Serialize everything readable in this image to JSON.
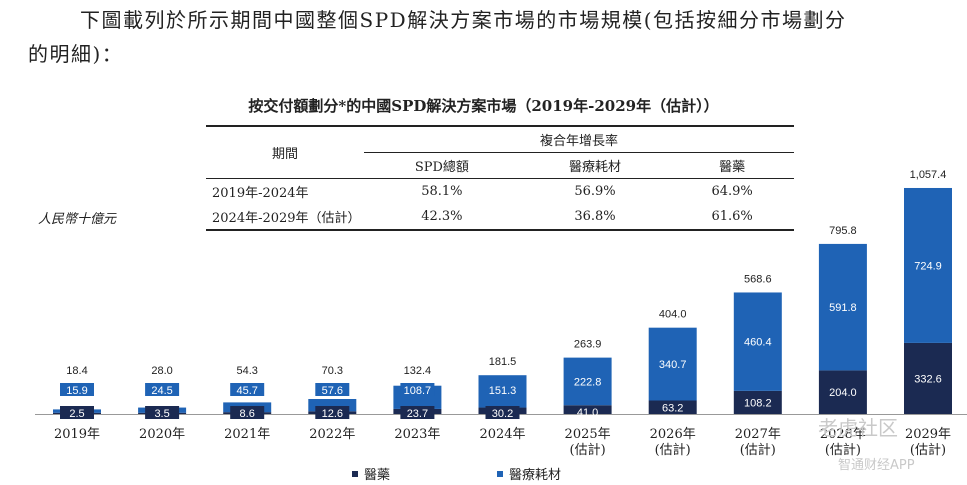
{
  "intro": {
    "line1": "下圖載列於所示期間中國整個SPD解決方案市場的市場規模(包括按細分市場劃分",
    "line2": "的明細)："
  },
  "table": {
    "title": "按交付額劃分*的中國SPD解決方案市場（2019年-2029年（估計））",
    "period_header": "期間",
    "cagr_header": "複合年增長率",
    "columns": [
      "SPD總額",
      "醫療耗材",
      "醫藥"
    ],
    "rows": [
      {
        "period": "2019年-2024年",
        "values": [
          "58.1%",
          "56.9%",
          "64.9%"
        ]
      },
      {
        "period": "2024年-2029年（估計）",
        "values": [
          "42.3%",
          "36.8%",
          "61.6%"
        ]
      }
    ]
  },
  "chart_data": {
    "type": "bar",
    "stacked": true,
    "title": "按交付額劃分*的中國SPD解決方案市場（2019年-2029年（估計））",
    "ylabel": "人民幣十億元",
    "categories": [
      [
        "2019年"
      ],
      [
        "2020年"
      ],
      [
        "2021年"
      ],
      [
        "2022年"
      ],
      [
        "2023年"
      ],
      [
        "2024年"
      ],
      [
        "2025年",
        "(估計)"
      ],
      [
        "2026年",
        "(估計)"
      ],
      [
        "2027年",
        "(估計)"
      ],
      [
        "2028年",
        "(估計)"
      ],
      [
        "2029年",
        "(估計)"
      ]
    ],
    "series": [
      {
        "name": "醫藥",
        "color": "#1b2a52",
        "values": [
          2.5,
          3.5,
          8.6,
          12.6,
          23.7,
          30.2,
          41.0,
          63.2,
          108.2,
          204.0,
          332.6
        ]
      },
      {
        "name": "醫療耗材",
        "color": "#1f63b5",
        "values": [
          15.9,
          24.5,
          45.7,
          57.6,
          108.7,
          151.3,
          222.8,
          340.7,
          460.4,
          591.8,
          724.9
        ]
      }
    ],
    "totals": [
      18.4,
      28.0,
      54.3,
      70.3,
      132.4,
      181.5,
      263.9,
      404.0,
      568.6,
      795.8,
      1057.4
    ],
    "total_labels": [
      "18.4",
      "28.0",
      "54.3",
      "70.3",
      "132.4",
      "181.5",
      "263.9",
      "404.0",
      "568.6",
      "795.8",
      "1,057.4"
    ],
    "ylim": [
      0,
      1057.4
    ],
    "legend": "bottom-center"
  },
  "legend": {
    "items": [
      {
        "label": "醫藥",
        "color": "#1b2a52"
      },
      {
        "label": "醫療耗材",
        "color": "#1f63b5"
      }
    ]
  },
  "watermark": {
    "line1": "老虎社区",
    "line2": "智通财经APP"
  }
}
